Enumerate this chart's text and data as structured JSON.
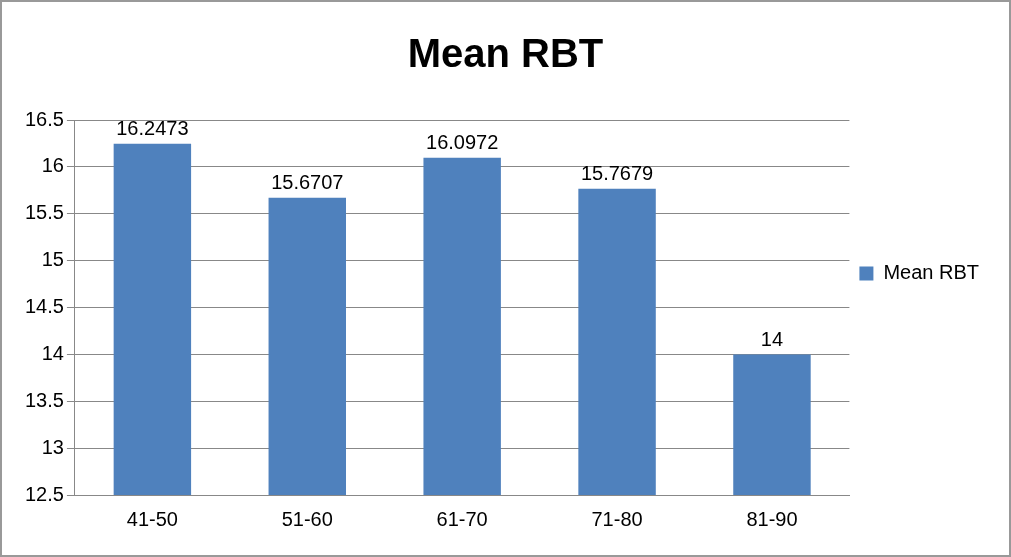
{
  "chart_data": {
    "type": "bar",
    "title": "Mean RBT",
    "categories": [
      "41-50",
      "51-60",
      "61-70",
      "71-80",
      "81-90"
    ],
    "series": [
      {
        "name": "Mean RBT",
        "color": "#4f81bd",
        "values": [
          16.2473,
          15.6707,
          16.0972,
          15.7679,
          14
        ]
      }
    ],
    "ylim": [
      12.5,
      16.5
    ],
    "yticks": [
      12.5,
      13,
      13.5,
      14,
      14.5,
      15,
      15.5,
      16,
      16.5
    ],
    "grid": "y",
    "legend": "right",
    "data_labels": true
  }
}
